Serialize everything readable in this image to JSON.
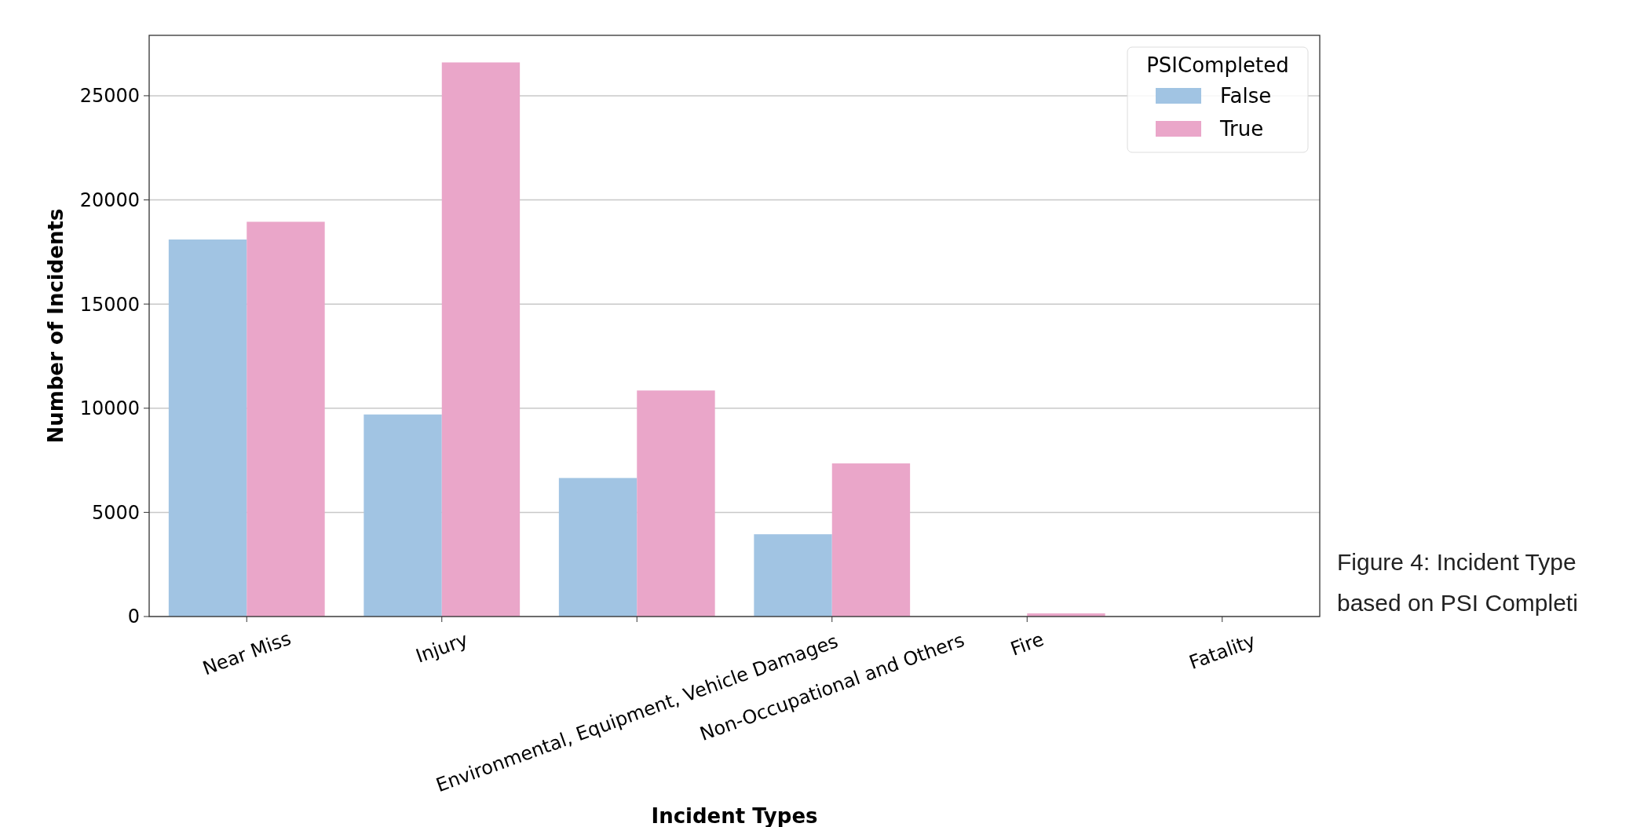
{
  "chart_data": {
    "type": "bar",
    "xlabel": "Incident Types",
    "ylabel": "Number of Incidents",
    "legend_title": "PSICompleted",
    "categories": [
      "Near Miss",
      "Injury",
      "Environmental, Equipment, Vehicle Damages",
      "Non-Occupational and Others",
      "Fire",
      "Fatality"
    ],
    "series": [
      {
        "name": "False",
        "color": "#a1c4e3",
        "values": [
          18100,
          9700,
          6650,
          3950,
          0,
          0
        ]
      },
      {
        "name": "True",
        "color": "#eaa6c9",
        "values": [
          18950,
          26600,
          10850,
          7350,
          150,
          0
        ]
      }
    ],
    "ylim": [
      0,
      27900
    ],
    "yticks": [
      0,
      5000,
      10000,
      15000,
      20000,
      25000
    ],
    "grid": "y",
    "legend": "top right",
    "annotations": [
      "Figure 4: Incident Type",
      "based on PSI Completi"
    ]
  }
}
